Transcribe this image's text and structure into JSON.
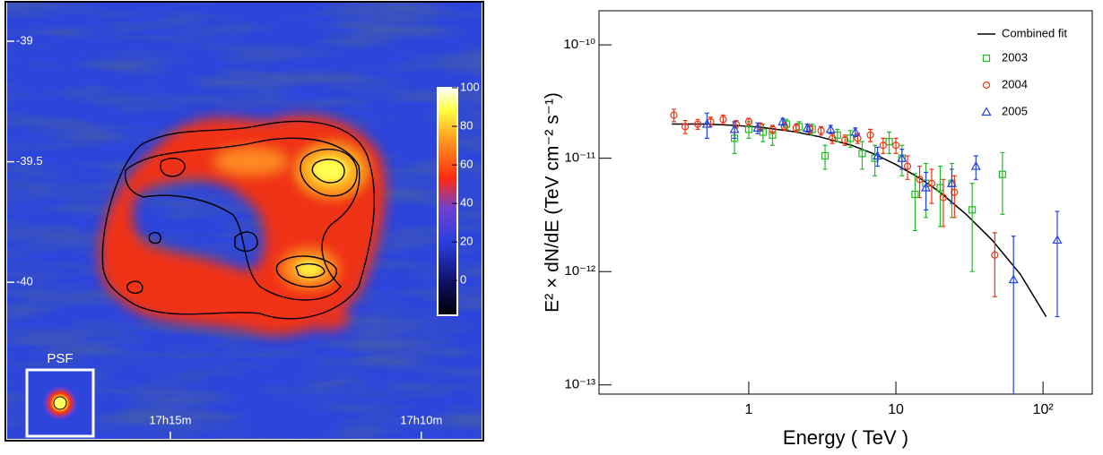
{
  "chart_data": [
    {
      "type": "image",
      "annotation": "PSF",
      "xlim": [
        18.25,
        8.8
      ],
      "xticks": [
        {
          "value": 15,
          "label": "17h15m"
        },
        {
          "value": 10,
          "label": "17h10m"
        }
      ],
      "ylim": [
        -40.65,
        -38.84
      ],
      "yticks": [
        -39,
        -39.5,
        -40
      ],
      "clim": [
        -18,
        100
      ],
      "cticks": [
        100,
        80,
        60,
        40,
        20,
        0
      ]
    },
    {
      "type": "scatter",
      "xlabel": "Energy ( TeV )",
      "ylabel": "E² × dN/dE (TeV cm⁻² s⁻¹)",
      "xlog": true,
      "ylog": true,
      "xlim": [
        0.096,
        216
      ],
      "ylim": [
        8.3e-14,
        2e-10
      ],
      "xticks": [
        1,
        10,
        {
          "value": 100,
          "label": "10²"
        }
      ],
      "yticks": [
        {
          "value": 1e-10,
          "label": "10⁻¹⁰"
        },
        {
          "value": 1e-11,
          "label": "10⁻¹¹"
        },
        {
          "value": 1e-12,
          "label": "10⁻¹²"
        },
        {
          "value": 1e-13,
          "label": "10⁻¹³"
        }
      ],
      "legend": "upper right",
      "series": [
        {
          "name": "Combined fit",
          "color": "#000000",
          "marker": "line",
          "x": [
            0.3,
            0.5,
            0.8,
            1.2,
            2,
            3,
            5,
            7,
            10,
            15,
            20,
            30,
            45,
            70,
            105
          ],
          "values": [
            2e-11,
            2e-11,
            1.95e-11,
            1.88e-11,
            1.72e-11,
            1.55e-11,
            1.3e-11,
            1.1e-11,
            8.8e-12,
            6.5e-12,
            5e-12,
            3.2e-12,
            1.9e-12,
            9.5e-13,
            4e-13
          ]
        },
        {
          "name": "2003",
          "color": "#22bb22",
          "marker": "square",
          "x": [
            0.8,
            1.0,
            1.25,
            1.45,
            1.8,
            2.2,
            2.7,
            3.3,
            4.0,
            4.9,
            5.9,
            7.2,
            9.0,
            11,
            13.5,
            16,
            20,
            24,
            33,
            53
          ],
          "values": [
            1.5e-11,
            1.8e-11,
            1.7e-11,
            1.6e-11,
            2e-11,
            1.9e-11,
            1.8e-11,
            1.05e-11,
            1.6e-11,
            1.5e-11,
            1.1e-11,
            1e-11,
            1.4e-11,
            1e-11,
            4.8e-12,
            6e-12,
            5.5e-12,
            6e-12,
            3.5e-12,
            7.2e-12
          ],
          "errors": [
            4e-12,
            3e-12,
            3e-12,
            3e-12,
            2e-12,
            2e-12,
            2e-12,
            2.5e-12,
            2e-12,
            2.5e-12,
            3e-12,
            3e-12,
            3e-12,
            3e-12,
            2.5e-12,
            3e-12,
            3e-12,
            3e-12,
            2.5e-12,
            4e-12
          ]
        },
        {
          "name": "2004",
          "color": "#ee3311",
          "marker": "circle",
          "x": [
            0.31,
            0.37,
            0.45,
            0.55,
            0.67,
            0.82,
            1.0,
            1.2,
            1.45,
            1.75,
            2.1,
            2.6,
            3.1,
            3.7,
            4.5,
            5.5,
            6.7,
            8.2,
            10,
            12,
            14.5,
            17.5,
            21,
            25,
            47
          ],
          "values": [
            2.4e-11,
            1.9e-11,
            2e-11,
            2.1e-11,
            2.2e-11,
            2e-11,
            2.1e-11,
            1.9e-11,
            1.8e-11,
            1.9e-11,
            1.85e-11,
            1.8e-11,
            1.75e-11,
            1.5e-11,
            1.45e-11,
            1.5e-11,
            1.6e-11,
            1.3e-11,
            1.3e-11,
            8.5e-12,
            6.5e-12,
            6e-12,
            4.5e-12,
            5e-12,
            1.4e-12
          ],
          "errors": [
            3e-12,
            2.5e-12,
            2e-12,
            2e-12,
            2e-12,
            1.5e-12,
            1.5e-12,
            1.5e-12,
            1.5e-12,
            1.5e-12,
            1.5e-12,
            1.5e-12,
            1.5e-12,
            1.5e-12,
            1.5e-12,
            1.5e-12,
            2e-12,
            2e-12,
            2e-12,
            2e-12,
            2e-12,
            2e-12,
            2e-12,
            2e-12,
            8e-13
          ]
        },
        {
          "name": "2005",
          "color": "#2244dd",
          "marker": "triangle",
          "x": [
            0.52,
            0.8,
            1.15,
            1.7,
            2.5,
            3.6,
            5.3,
            7.5,
            11,
            16,
            24,
            35,
            63,
            125
          ],
          "values": [
            2e-11,
            1.8e-11,
            1.85e-11,
            2.1e-11,
            1.85e-11,
            1.8e-11,
            1.7e-11,
            1.05e-11,
            1e-11,
            5.5e-12,
            6e-12,
            8.5e-12,
            8.5e-13,
            1.9e-12
          ],
          "errors": [
            5e-12,
            3e-12,
            2e-12,
            1.5e-12,
            1.5e-12,
            1.5e-12,
            1.5e-12,
            2e-12,
            2e-12,
            2e-12,
            2e-12,
            2e-12,
            1.2e-12,
            1.5e-12
          ]
        }
      ]
    }
  ]
}
